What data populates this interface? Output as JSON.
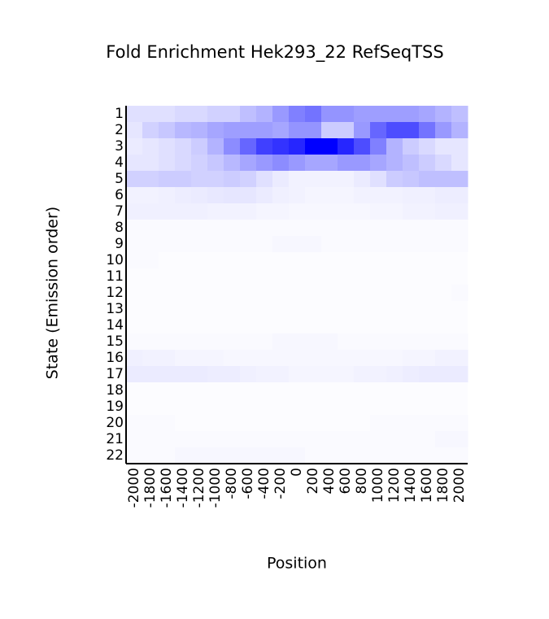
{
  "chart_data": {
    "type": "heatmap",
    "title": "Fold Enrichment Hek293_22 RefSeqTSS",
    "x_label": "Position",
    "y_label": "State (Emission order)",
    "x_categories": [
      "-2000",
      "-1800",
      "-1600",
      "-1400",
      "-1200",
      "-1000",
      "-800",
      "-600",
      "-400",
      "-200",
      "0",
      "200",
      "400",
      "600",
      "800",
      "1000",
      "1200",
      "1400",
      "1600",
      "1800",
      "2000"
    ],
    "y_categories": [
      "1",
      "2",
      "3",
      "4",
      "5",
      "6",
      "7",
      "8",
      "9",
      "10",
      "11",
      "12",
      "13",
      "14",
      "15",
      "16",
      "17",
      "18",
      "19",
      "20",
      "21",
      "22"
    ],
    "color": "#0000ff",
    "values": [
      [
        0.12,
        0.12,
        0.12,
        0.15,
        0.15,
        0.18,
        0.18,
        0.25,
        0.3,
        0.4,
        0.5,
        0.55,
        0.42,
        0.42,
        0.38,
        0.38,
        0.38,
        0.38,
        0.35,
        0.3,
        0.25
      ],
      [
        0.1,
        0.18,
        0.22,
        0.28,
        0.3,
        0.35,
        0.38,
        0.38,
        0.38,
        0.35,
        0.42,
        0.42,
        0.2,
        0.2,
        0.4,
        0.6,
        0.7,
        0.7,
        0.55,
        0.4,
        0.3
      ],
      [
        0.08,
        0.1,
        0.12,
        0.15,
        0.2,
        0.3,
        0.45,
        0.6,
        0.75,
        0.8,
        0.85,
        1.0,
        1.0,
        0.85,
        0.7,
        0.5,
        0.3,
        0.2,
        0.15,
        0.1,
        0.1
      ],
      [
        0.1,
        0.1,
        0.12,
        0.15,
        0.18,
        0.22,
        0.28,
        0.35,
        0.4,
        0.45,
        0.4,
        0.35,
        0.35,
        0.4,
        0.4,
        0.35,
        0.3,
        0.25,
        0.2,
        0.15,
        0.1
      ],
      [
        0.18,
        0.18,
        0.2,
        0.2,
        0.18,
        0.18,
        0.2,
        0.18,
        0.12,
        0.08,
        0.05,
        0.05,
        0.05,
        0.05,
        0.08,
        0.12,
        0.2,
        0.22,
        0.25,
        0.25,
        0.25
      ],
      [
        0.05,
        0.05,
        0.06,
        0.07,
        0.08,
        0.09,
        0.1,
        0.1,
        0.08,
        0.06,
        0.05,
        0.04,
        0.04,
        0.04,
        0.05,
        0.05,
        0.05,
        0.06,
        0.06,
        0.07,
        0.07
      ],
      [
        0.06,
        0.06,
        0.06,
        0.06,
        0.06,
        0.05,
        0.05,
        0.05,
        0.04,
        0.04,
        0.03,
        0.03,
        0.03,
        0.03,
        0.03,
        0.04,
        0.04,
        0.05,
        0.05,
        0.06,
        0.06
      ],
      [
        0.02,
        0.02,
        0.02,
        0.02,
        0.02,
        0.02,
        0.02,
        0.02,
        0.02,
        0.02,
        0.02,
        0.02,
        0.02,
        0.02,
        0.02,
        0.02,
        0.02,
        0.02,
        0.02,
        0.02,
        0.02
      ],
      [
        0.02,
        0.02,
        0.02,
        0.02,
        0.02,
        0.02,
        0.02,
        0.02,
        0.02,
        0.03,
        0.03,
        0.03,
        0.02,
        0.02,
        0.02,
        0.02,
        0.02,
        0.02,
        0.02,
        0.02,
        0.02
      ],
      [
        0.02,
        0.02,
        0.01,
        0.01,
        0.01,
        0.01,
        0.01,
        0.01,
        0.01,
        0.01,
        0.01,
        0.01,
        0.01,
        0.01,
        0.01,
        0.01,
        0.01,
        0.01,
        0.01,
        0.01,
        0.01
      ],
      [
        0.01,
        0.01,
        0.01,
        0.01,
        0.01,
        0.01,
        0.01,
        0.01,
        0.01,
        0.01,
        0.01,
        0.01,
        0.01,
        0.01,
        0.01,
        0.01,
        0.01,
        0.01,
        0.01,
        0.01,
        0.01
      ],
      [
        0.01,
        0.01,
        0.01,
        0.01,
        0.01,
        0.01,
        0.01,
        0.01,
        0.01,
        0.01,
        0.01,
        0.01,
        0.01,
        0.01,
        0.01,
        0.01,
        0.01,
        0.01,
        0.01,
        0.01,
        0.02
      ],
      [
        0.01,
        0.01,
        0.01,
        0.01,
        0.01,
        0.01,
        0.01,
        0.01,
        0.01,
        0.01,
        0.01,
        0.01,
        0.01,
        0.01,
        0.01,
        0.01,
        0.01,
        0.01,
        0.01,
        0.01,
        0.01
      ],
      [
        0.01,
        0.01,
        0.01,
        0.01,
        0.01,
        0.01,
        0.01,
        0.01,
        0.01,
        0.01,
        0.01,
        0.01,
        0.01,
        0.01,
        0.01,
        0.01,
        0.01,
        0.01,
        0.01,
        0.01,
        0.01
      ],
      [
        0.02,
        0.02,
        0.02,
        0.02,
        0.02,
        0.02,
        0.02,
        0.02,
        0.02,
        0.03,
        0.03,
        0.03,
        0.03,
        0.02,
        0.02,
        0.02,
        0.02,
        0.02,
        0.02,
        0.02,
        0.02
      ],
      [
        0.06,
        0.05,
        0.05,
        0.04,
        0.04,
        0.04,
        0.03,
        0.03,
        0.03,
        0.03,
        0.03,
        0.03,
        0.03,
        0.03,
        0.03,
        0.03,
        0.03,
        0.04,
        0.04,
        0.05,
        0.05
      ],
      [
        0.08,
        0.08,
        0.08,
        0.08,
        0.08,
        0.07,
        0.07,
        0.06,
        0.05,
        0.05,
        0.04,
        0.04,
        0.04,
        0.04,
        0.05,
        0.05,
        0.06,
        0.07,
        0.08,
        0.08,
        0.08
      ],
      [
        0.01,
        0.01,
        0.01,
        0.01,
        0.01,
        0.01,
        0.01,
        0.01,
        0.01,
        0.01,
        0.01,
        0.01,
        0.01,
        0.01,
        0.01,
        0.01,
        0.01,
        0.01,
        0.01,
        0.01,
        0.01
      ],
      [
        0.01,
        0.01,
        0.01,
        0.01,
        0.01,
        0.01,
        0.01,
        0.01,
        0.01,
        0.01,
        0.01,
        0.01,
        0.01,
        0.01,
        0.01,
        0.01,
        0.01,
        0.01,
        0.01,
        0.01,
        0.01
      ],
      [
        0.02,
        0.02,
        0.02,
        0.01,
        0.01,
        0.01,
        0.01,
        0.01,
        0.01,
        0.01,
        0.01,
        0.01,
        0.01,
        0.01,
        0.01,
        0.02,
        0.02,
        0.02,
        0.02,
        0.02,
        0.02
      ],
      [
        0.02,
        0.02,
        0.02,
        0.02,
        0.02,
        0.02,
        0.02,
        0.02,
        0.02,
        0.02,
        0.02,
        0.02,
        0.02,
        0.02,
        0.02,
        0.02,
        0.02,
        0.02,
        0.02,
        0.03,
        0.03
      ],
      [
        0.02,
        0.02,
        0.02,
        0.03,
        0.03,
        0.03,
        0.03,
        0.03,
        0.03,
        0.03,
        0.03,
        0.02,
        0.02,
        0.02,
        0.02,
        0.02,
        0.02,
        0.02,
        0.02,
        0.02,
        0.02
      ]
    ]
  }
}
